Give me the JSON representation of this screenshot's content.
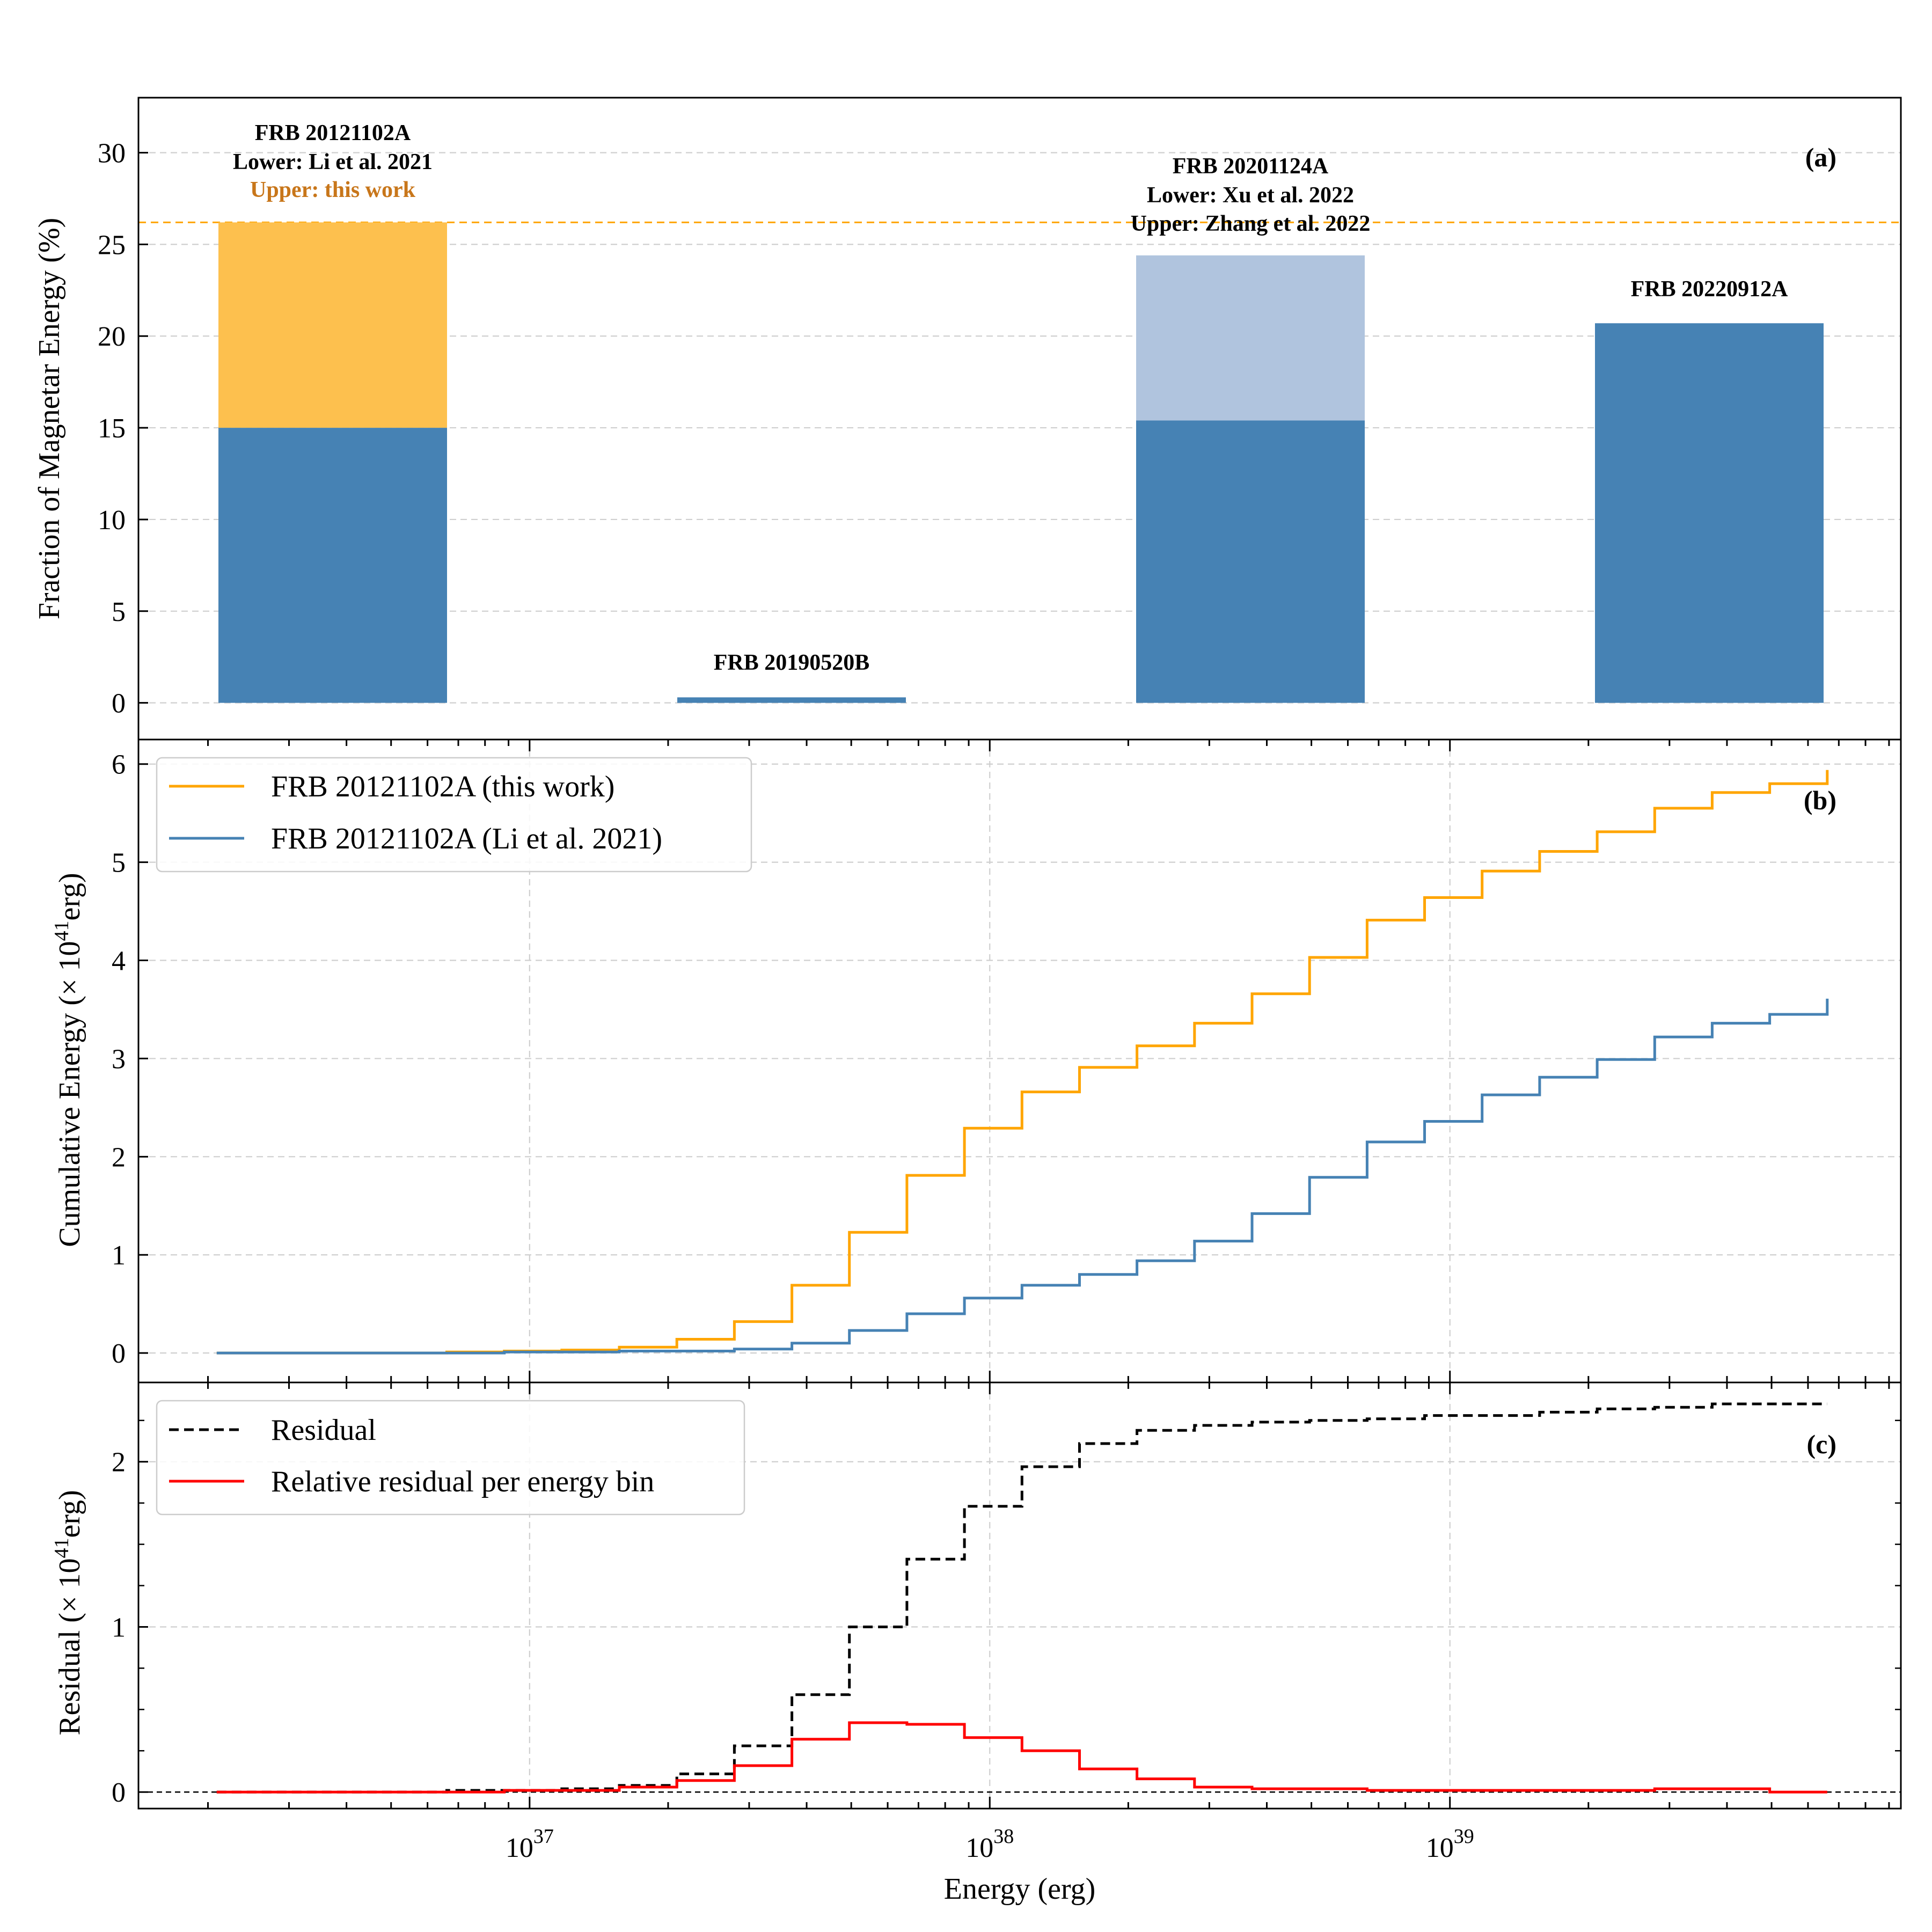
{
  "colors": {
    "steelblue": "#4682b4",
    "lightsteelblue": "#b0c4de",
    "orange": "#ffa500",
    "bar_orange": "#fdc04e",
    "upper_label": "#c8761a",
    "red": "#ff0000",
    "black": "#000000",
    "grid": "#cfcfcf"
  },
  "chart_data": [
    {
      "panel": "a",
      "type": "bar",
      "panel_tag": "(a)",
      "ylabel": "Fraction of Magnetar Energy (%)",
      "ylim": [
        -2,
        33
      ],
      "yticks": [
        0,
        5,
        10,
        15,
        20,
        25,
        30
      ],
      "grid": true,
      "reference_line": {
        "y": 26.2,
        "color": "#ffa500",
        "style": "dashed"
      },
      "bars": [
        {
          "name": "FRB 20121102A",
          "lower": 15.0,
          "upper": 26.2,
          "labels": [
            "FRB 20121102A",
            "Lower: Li et al. 2021",
            "Upper: this work"
          ]
        },
        {
          "name": "FRB 20190520B",
          "lower": 0.3,
          "upper": null,
          "labels": [
            "FRB 20190520B"
          ]
        },
        {
          "name": "FRB 20201124A",
          "lower": 15.4,
          "upper": 24.4,
          "labels": [
            "FRB 20201124A",
            "Lower: Xu et al. 2022",
            "Upper: Zhang et al. 2022"
          ]
        },
        {
          "name": "FRB 20220912A",
          "lower": 20.7,
          "upper": null,
          "labels": [
            "FRB 20220912A"
          ]
        }
      ]
    },
    {
      "panel": "b",
      "type": "line",
      "panel_tag": "(b)",
      "ylabel": "Cumulative Energy (× 10⁴¹erg)",
      "ylabel_parts": [
        "Cumulative Energy (× 10",
        "41",
        "erg)"
      ],
      "xscale": "log",
      "xlim_log10": [
        36.15,
        39.98
      ],
      "ylim": [
        -0.3,
        6.25
      ],
      "yticks": [
        0,
        1,
        2,
        3,
        4,
        5,
        6
      ],
      "grid": true,
      "legend": {
        "placement": "upper-left",
        "entries": [
          "FRB 20121102A (this work)",
          "FRB 20121102A (Li et al. 2021)"
        ]
      },
      "x_log10": [
        36.32,
        36.445,
        36.57,
        36.695,
        36.82,
        36.945,
        37.07,
        37.195,
        37.32,
        37.445,
        37.57,
        37.695,
        37.82,
        37.945,
        38.07,
        38.195,
        38.32,
        38.445,
        38.57,
        38.695,
        38.82,
        38.945,
        39.07,
        39.195,
        39.32,
        39.445,
        39.57,
        39.695,
        39.82
      ],
      "series": [
        {
          "name": "FRB 20121102A (this work)",
          "color": "#ffa500",
          "values": [
            0,
            0,
            0,
            0,
            0.01,
            0.02,
            0.03,
            0.06,
            0.14,
            0.32,
            0.69,
            1.23,
            1.81,
            2.29,
            2.66,
            2.91,
            3.13,
            3.36,
            3.66,
            4.03,
            4.41,
            4.64,
            4.91,
            5.11,
            5.31,
            5.55,
            5.71,
            5.8,
            5.94
          ]
        },
        {
          "name": "FRB 20121102A (Li et al. 2021)",
          "color": "#4682b4",
          "values": [
            0,
            0,
            0,
            0,
            0,
            0.01,
            0.01,
            0.02,
            0.02,
            0.04,
            0.1,
            0.23,
            0.4,
            0.56,
            0.69,
            0.8,
            0.94,
            1.14,
            1.42,
            1.79,
            2.15,
            2.36,
            2.63,
            2.81,
            2.99,
            3.22,
            3.36,
            3.45,
            3.61
          ]
        }
      ]
    },
    {
      "panel": "c",
      "type": "line",
      "panel_tag": "(c)",
      "ylabel": "Residual (× 10⁴¹erg)",
      "ylabel_parts": [
        "Residual (× 10",
        "41",
        "erg)"
      ],
      "xlabel": "Energy (erg)",
      "xscale": "log",
      "xlim_log10": [
        36.15,
        39.98
      ],
      "xticks": [
        {
          "log10": 37,
          "base": "10",
          "exp": "37"
        },
        {
          "log10": 38,
          "base": "10",
          "exp": "38"
        },
        {
          "log10": 39,
          "base": "10",
          "exp": "39"
        }
      ],
      "ylim": [
        -0.1,
        2.48
      ],
      "yticks": [
        0,
        1,
        2
      ],
      "grid": true,
      "zero_line": true,
      "legend": {
        "placement": "upper-left",
        "entries": [
          "Residual",
          "Relative residual per energy bin"
        ]
      },
      "x_log10": [
        36.32,
        36.445,
        36.57,
        36.695,
        36.82,
        36.945,
        37.07,
        37.195,
        37.32,
        37.445,
        37.57,
        37.695,
        37.82,
        37.945,
        38.07,
        38.195,
        38.32,
        38.445,
        38.57,
        38.695,
        38.82,
        38.945,
        39.07,
        39.195,
        39.32,
        39.445,
        39.57,
        39.695,
        39.82
      ],
      "series": [
        {
          "name": "Residual",
          "color": "#000000",
          "style": "dashed",
          "values": [
            0,
            0,
            0,
            0,
            0.01,
            0.01,
            0.02,
            0.04,
            0.11,
            0.28,
            0.59,
            1.0,
            1.41,
            1.73,
            1.97,
            2.11,
            2.19,
            2.22,
            2.24,
            2.25,
            2.26,
            2.28,
            2.28,
            2.3,
            2.32,
            2.33,
            2.35,
            2.35,
            2.35
          ]
        },
        {
          "name": "Relative residual per energy bin",
          "color": "#ff0000",
          "style": "solid",
          "values": [
            0,
            0,
            0,
            0,
            0,
            0.01,
            0.01,
            0.03,
            0.07,
            0.16,
            0.32,
            0.42,
            0.41,
            0.33,
            0.25,
            0.14,
            0.08,
            0.03,
            0.02,
            0.02,
            0.01,
            0.01,
            0.01,
            0.01,
            0.01,
            0.02,
            0.02,
            0,
            0
          ]
        }
      ]
    }
  ]
}
